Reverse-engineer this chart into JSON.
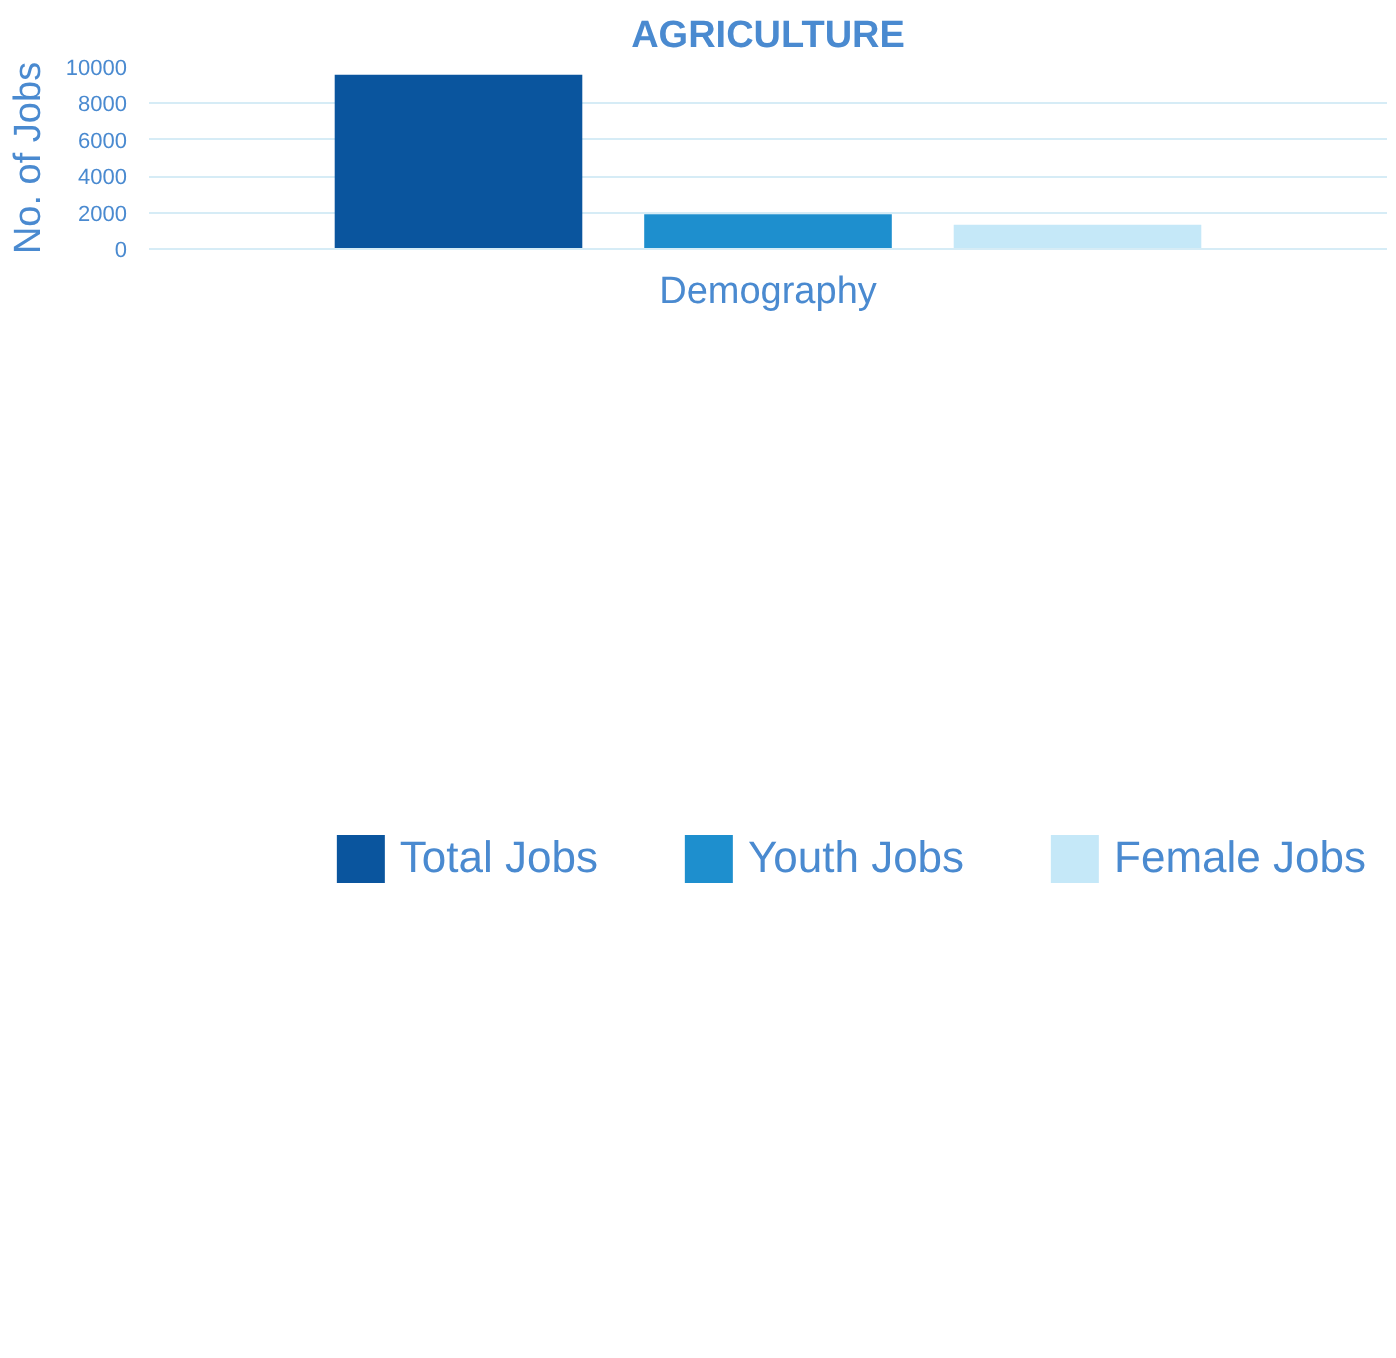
{
  "chart_data": {
    "type": "bar",
    "title": "AGRICULTURE",
    "xlabel": "Demography",
    "ylabel": "No. of Jobs",
    "categories": [
      null
    ],
    "series": [
      {
        "name": "Total Jobs",
        "color": "#0a559e",
        "values": [
          9580
        ]
      },
      {
        "name": "Youth Jobs",
        "color": "#1e8fce",
        "values": [
          1910
        ]
      },
      {
        "name": "Female Jobs",
        "color": "#c5e8f8",
        "values": [
          1330
        ]
      }
    ],
    "ylim": [
      0,
      10000
    ],
    "yticks": [
      0,
      2000,
      4000,
      6000,
      8000,
      10000
    ],
    "grid": "y",
    "legend": "bottom"
  }
}
